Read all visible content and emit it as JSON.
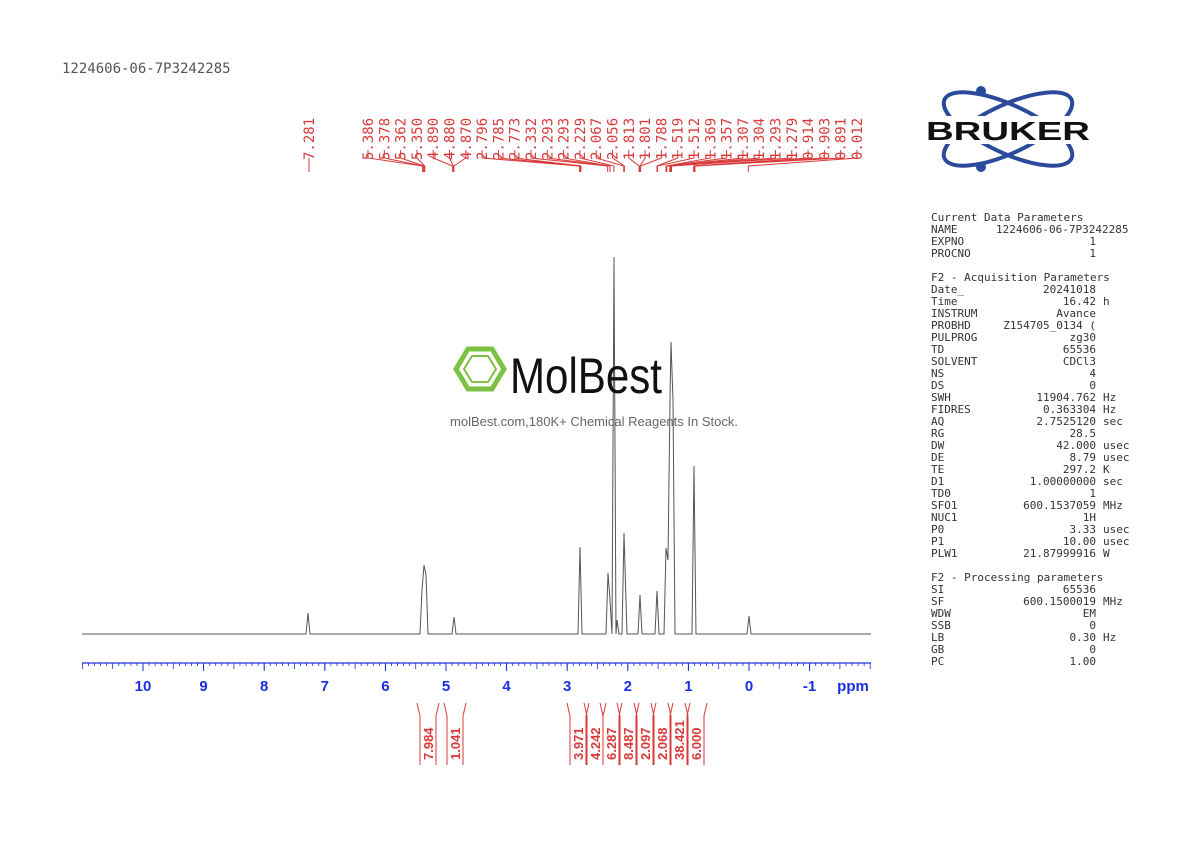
{
  "header": {
    "id": "1224606-06-7P3242285"
  },
  "peaks": [
    "7.281",
    "5.386",
    "5.378",
    "5.362",
    "5.350",
    "4.890",
    "4.880",
    "4.870",
    "2.796",
    "2.785",
    "2.773",
    "2.332",
    "2.293",
    "2.293",
    "2.229",
    "2.067",
    "2.056",
    "1.813",
    "1.801",
    "1.788",
    "1.519",
    "1.512",
    "1.369",
    "1.357",
    "1.307",
    "1.304",
    "1.293",
    "1.279",
    "0.914",
    "0.903",
    "0.891",
    "0.012"
  ],
  "axis": {
    "ticks": [
      "10",
      "9",
      "8",
      "7",
      "6",
      "5",
      "4",
      "3",
      "2",
      "1",
      "0",
      "-1"
    ],
    "unit": "ppm"
  },
  "integrals": [
    "7.984",
    "1.041",
    "3.971",
    "4.242",
    "6.287",
    "8.487",
    "2.097",
    "2.068",
    "38.421",
    "6.000"
  ],
  "logo": {
    "text": "BRUKER"
  },
  "watermark": {
    "brand": "MolBest",
    "tagline": "molBest.com,180K+ Chemical Reagents In Stock."
  },
  "parameters": [
    {
      "title": "Current Data Parameters",
      "rows": [
        [
          "NAME",
          "1224606-06-7P3242285"
        ],
        [
          "EXPNO",
          "1"
        ],
        [
          "PROCNO",
          "1"
        ]
      ]
    },
    {
      "title": "F2 - Acquisition Parameters",
      "rows": [
        [
          "Date_",
          "20241018"
        ],
        [
          "Time",
          "16.42",
          "h"
        ],
        [
          "INSTRUM",
          "Avance"
        ],
        [
          "PROBHD",
          "Z154705_0134 ("
        ],
        [
          "PULPROG",
          "zg30"
        ],
        [
          "TD",
          "65536"
        ],
        [
          "SOLVENT",
          "CDCl3"
        ],
        [
          "NS",
          "4"
        ],
        [
          "DS",
          "0"
        ],
        [
          "SWH",
          "11904.762",
          "Hz"
        ],
        [
          "FIDRES",
          "0.363304",
          "Hz"
        ],
        [
          "AQ",
          "2.7525120",
          "sec"
        ],
        [
          "RG",
          "28.5"
        ],
        [
          "DW",
          "42.000",
          "usec"
        ],
        [
          "DE",
          "8.79",
          "usec"
        ],
        [
          "TE",
          "297.2",
          "K"
        ],
        [
          "D1",
          "1.00000000",
          "sec"
        ],
        [
          "TD0",
          "1"
        ],
        [
          "SFO1",
          "600.1537059",
          "MHz"
        ],
        [
          "NUC1",
          "1H"
        ],
        [
          "P0",
          "3.33",
          "usec"
        ],
        [
          "P1",
          "10.00",
          "usec"
        ],
        [
          "PLW1",
          "21.87999916",
          "W"
        ]
      ]
    },
    {
      "title": "F2 - Processing parameters",
      "rows": [
        [
          "SI",
          "65536"
        ],
        [
          "SF",
          "600.1500019",
          "MHz"
        ],
        [
          "WDW",
          "EM"
        ],
        [
          "SSB",
          "0"
        ],
        [
          "LB",
          "0.30",
          "Hz"
        ],
        [
          "GB",
          "0"
        ],
        [
          "PC",
          "1.00"
        ]
      ]
    }
  ]
}
